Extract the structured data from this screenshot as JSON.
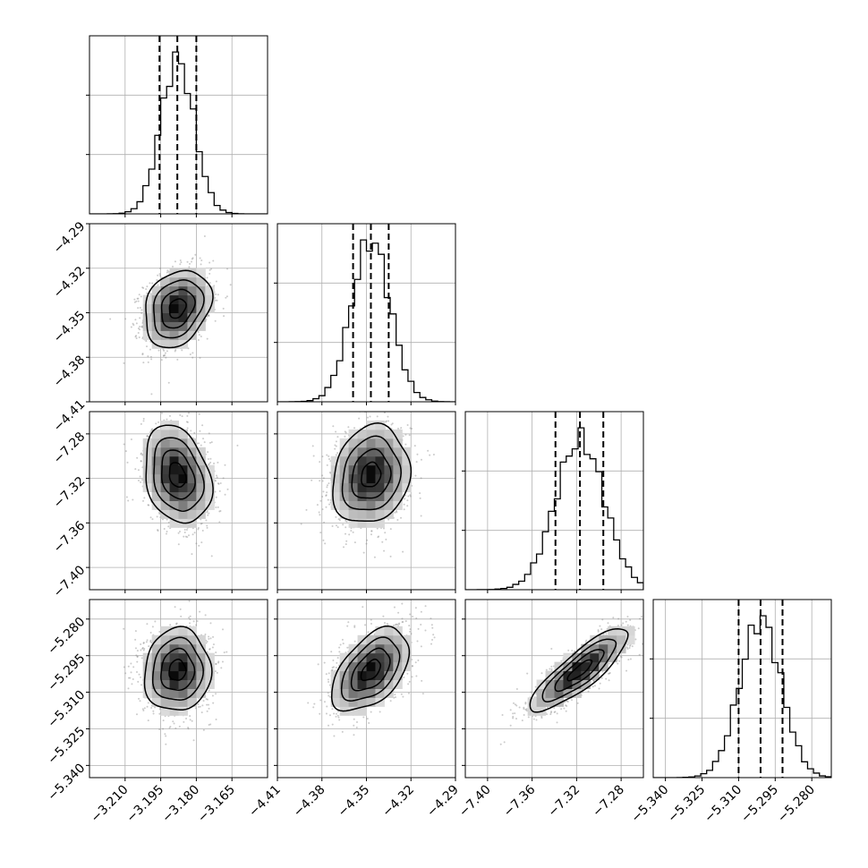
{
  "chart_data": {
    "type": "corner",
    "params": [
      {
        "center": -3.188,
        "sigma": 0.007,
        "range": [
          -3.225,
          -3.15
        ],
        "ticks": [
          -3.21,
          -3.195,
          -3.18,
          -3.165
        ],
        "tick_labels": [
          "−3.210",
          "−3.195",
          "−3.180",
          "−3.165"
        ],
        "quantiles": [
          -3.1955,
          -3.188,
          -3.18
        ]
      },
      {
        "center": -4.347,
        "sigma": 0.013,
        "range": [
          -4.41,
          -4.29
        ],
        "ticks": [
          -4.41,
          -4.38,
          -4.35,
          -4.32,
          -4.29
        ],
        "tick_labels": [
          "−4.41",
          "−4.38",
          "−4.35",
          "−4.32",
          "−4.29"
        ],
        "quantiles": [
          -4.359,
          -4.347,
          -4.335
        ]
      },
      {
        "center": -7.317,
        "sigma": 0.022,
        "range": [
          -7.42,
          -7.26
        ],
        "ticks": [
          -7.4,
          -7.36,
          -7.32,
          -7.28
        ],
        "tick_labels": [
          "−7.40",
          "−7.36",
          "−7.32",
          "−7.28"
        ],
        "quantiles": [
          -7.339,
          -7.317,
          -7.296
        ]
      },
      {
        "center": -5.301,
        "sigma": 0.0085,
        "range": [
          -5.345,
          -5.272
        ],
        "ticks": [
          -5.34,
          -5.325,
          -5.31,
          -5.295,
          -5.28
        ],
        "tick_labels": [
          "−5.340",
          "−5.325",
          "−5.310",
          "−5.295",
          "−5.280"
        ],
        "quantiles": [
          -5.31,
          -5.301,
          -5.292
        ]
      }
    ],
    "correlations": [
      [
        1,
        0.25,
        -0.25,
        0.05
      ],
      [
        0.25,
        1,
        0.15,
        0.5
      ],
      [
        -0.25,
        0.15,
        1,
        0.85
      ],
      [
        0.05,
        0.5,
        0.85,
        1
      ]
    ],
    "histogram_bins": 30,
    "contour_levels_sigma": [
      0.5,
      1.0,
      1.5,
      2.0
    ],
    "grid": true
  }
}
